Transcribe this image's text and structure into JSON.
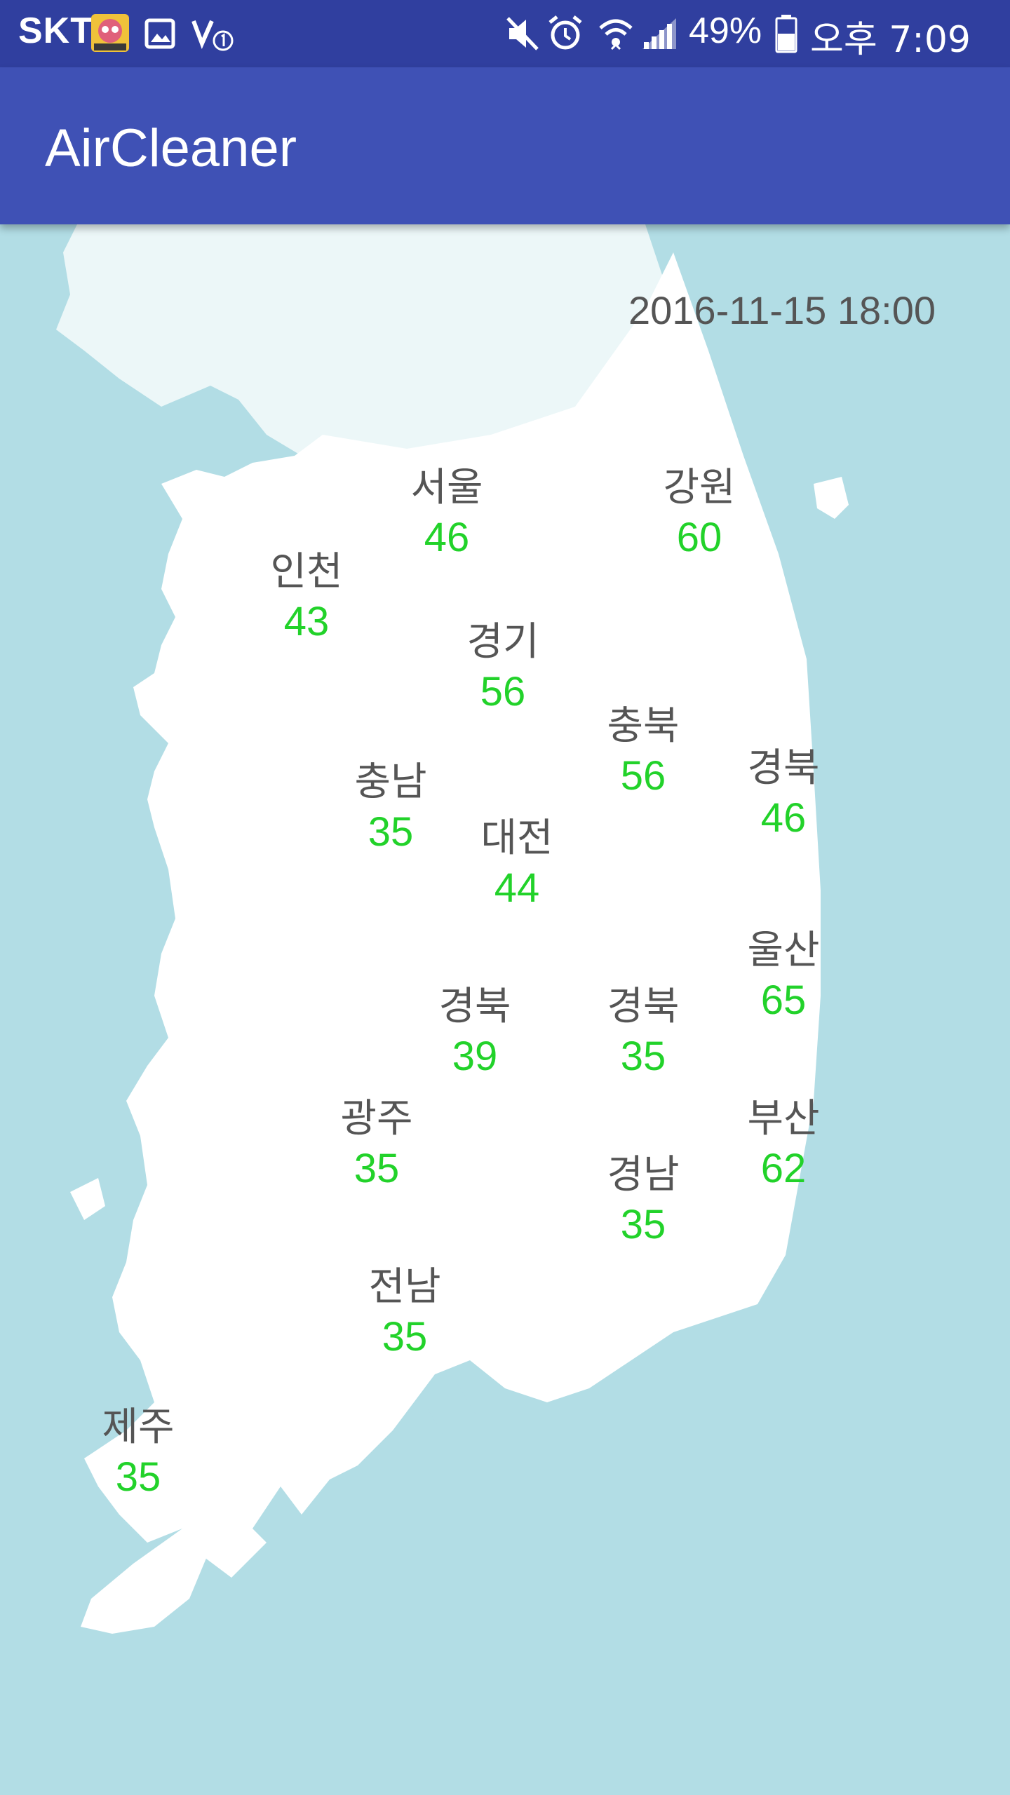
{
  "status_bar": {
    "carrier": "SKT",
    "battery": "49%",
    "time": "오후 7:09",
    "icons": [
      "netmarble-app-icon",
      "gallery-icon",
      "volte-icon",
      "mute-icon",
      "alarm-icon",
      "wifi-icon",
      "signal-icon",
      "battery-icon"
    ]
  },
  "app_bar": {
    "title": "AirCleaner"
  },
  "map": {
    "timestamp": "2016-11-15 18:00",
    "regions": [
      {
        "name": "서울",
        "value": "46"
      },
      {
        "name": "강원",
        "value": "60"
      },
      {
        "name": "인천",
        "value": "43"
      },
      {
        "name": "경기",
        "value": "56"
      },
      {
        "name": "충북",
        "value": "56"
      },
      {
        "name": "충남",
        "value": "35"
      },
      {
        "name": "경북",
        "value": "46"
      },
      {
        "name": "대전",
        "value": "44"
      },
      {
        "name": "울산",
        "value": "65"
      },
      {
        "name": "경북",
        "value": "39"
      },
      {
        "name": "경북",
        "value": "35"
      },
      {
        "name": "광주",
        "value": "35"
      },
      {
        "name": "부산",
        "value": "62"
      },
      {
        "name": "경남",
        "value": "35"
      },
      {
        "name": "전남",
        "value": "35"
      },
      {
        "name": "제주",
        "value": "35"
      }
    ]
  },
  "colors": {
    "status_bar": "#303f9f",
    "app_bar": "#3f51b5",
    "sea": "#b2dde5",
    "land": "#ffffff",
    "value_text": "#22d22a",
    "label_text": "#555555"
  }
}
